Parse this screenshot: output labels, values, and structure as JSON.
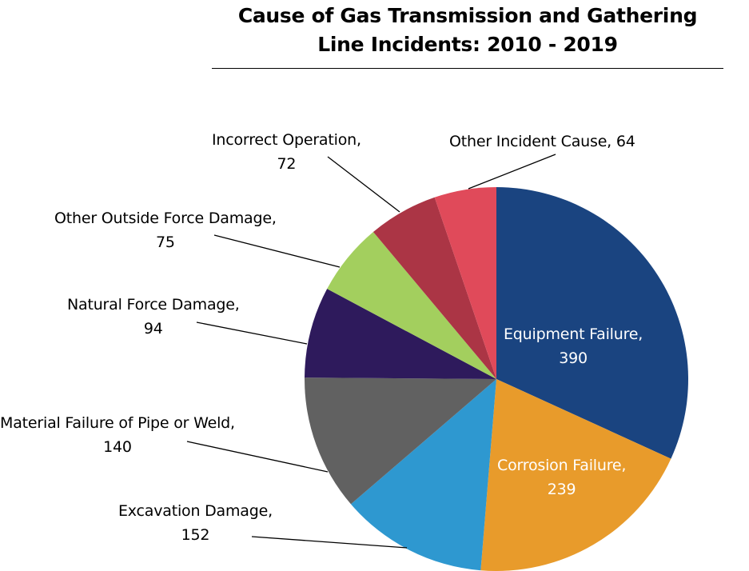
{
  "chart_data": {
    "type": "pie",
    "title": "Cause of Gas Transmission and Gathering Line Incidents: 2010 - 2019",
    "title_lines": [
      "Cause of Gas Transmission and Gathering",
      "Line Incidents: 2010 - 2019"
    ],
    "categories": [
      "Equipment Failure",
      "Corrosion Failure",
      "Excavation Damage",
      "Material Failure of Pipe or Weld",
      "Natural Force Damage",
      "Other Outside Force Damage",
      "Incorrect Operation",
      "Other Incident Cause"
    ],
    "values": [
      390,
      239,
      152,
      140,
      94,
      75,
      72,
      64
    ],
    "colors": [
      "#1a4480",
      "#e89b2b",
      "#2e98d0",
      "#616161",
      "#2e1a5c",
      "#a3cf5e",
      "#ab3545",
      "#e04a5a"
    ],
    "labels": [
      {
        "line1": "Equipment Failure,",
        "line2": "390"
      },
      {
        "line1": "Corrosion Failure,",
        "line2": "239"
      },
      {
        "line1": "Excavation Damage,",
        "line2": "152"
      },
      {
        "line1": "Material Failure of Pipe or Weld,",
        "line2": "140"
      },
      {
        "line1": "Natural Force Damage,",
        "line2": "94"
      },
      {
        "line1": "Other Outside Force Damage,",
        "line2": "75"
      },
      {
        "line1": "Incorrect Operation,",
        "line2": "72"
      },
      {
        "line1": "Other Incident Cause, 64",
        "line2": ""
      }
    ],
    "start_angle": "12 o'clock, clockwise",
    "legend": "none (data labels with leader lines)"
  }
}
